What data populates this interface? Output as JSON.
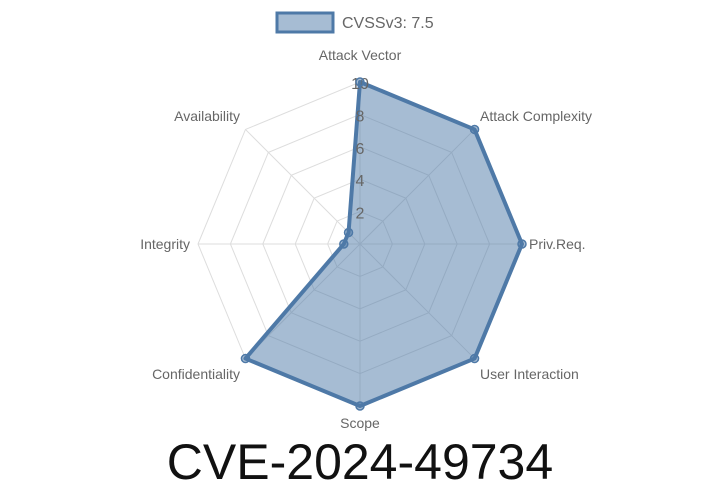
{
  "chart_data": {
    "type": "radar",
    "axes": [
      "Attack Vector",
      "Attack Complexity",
      "Priv.Req.",
      "User Interaction",
      "Scope",
      "Confidentiality",
      "Integrity",
      "Availability"
    ],
    "series": [
      {
        "name": "CVSSv3: 7.5",
        "values": [
          10,
          10,
          10,
          10,
          10,
          10,
          1,
          1
        ]
      }
    ],
    "rlim": [
      0,
      10
    ],
    "ticks": [
      "2",
      "4",
      "6",
      "8",
      "10"
    ],
    "legend_placement": "top",
    "colors": {
      "line": "#4e79a7",
      "fill": "#4e79a7",
      "grid": "#dddddd"
    }
  },
  "title": "CVE-2024-49734"
}
